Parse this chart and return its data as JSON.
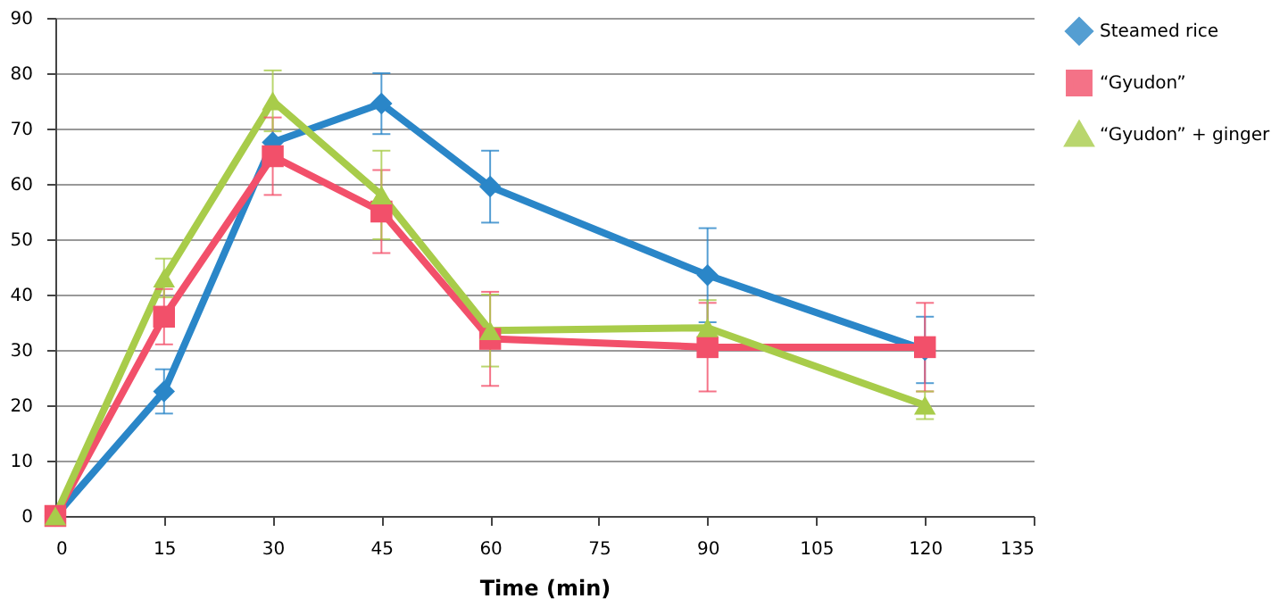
{
  "chart_data": {
    "type": "line",
    "xlabel": "Time (min)",
    "x": [
      0,
      15,
      30,
      45,
      60,
      90,
      120
    ],
    "series": [
      {
        "name": "Steamed rice",
        "color": "#2a86c8",
        "marker": "diamond",
        "values": [
          0,
          22.5,
          67.5,
          74.5,
          59.5,
          43.5,
          30
        ],
        "errors": [
          null,
          4,
          null,
          5.5,
          6.5,
          8.5,
          6
        ]
      },
      {
        "name": "“Gyudon”",
        "color": "#f2506a",
        "marker": "square",
        "values": [
          0,
          36,
          65,
          55,
          32,
          30.5,
          30.5
        ],
        "errors": [
          null,
          5,
          7,
          7.5,
          8.5,
          8,
          8
        ]
      },
      {
        "name": "“Gyudon” + ginger",
        "color": "#a8cc4a",
        "marker": "triangle",
        "values": [
          0,
          43,
          75,
          58,
          33.5,
          34,
          20
        ],
        "errors": [
          null,
          3.5,
          5.5,
          8,
          6.5,
          5,
          2.5
        ]
      }
    ],
    "xlim": [
      0,
      135
    ],
    "xticks": [
      0,
      15,
      30,
      45,
      60,
      75,
      90,
      105,
      120,
      135
    ],
    "ylim": [
      0,
      90
    ],
    "yticks": [
      0,
      10,
      20,
      30,
      40,
      50,
      60,
      70,
      80,
      90
    ],
    "grid": "y",
    "legend": "right",
    "line_style": "solid"
  }
}
